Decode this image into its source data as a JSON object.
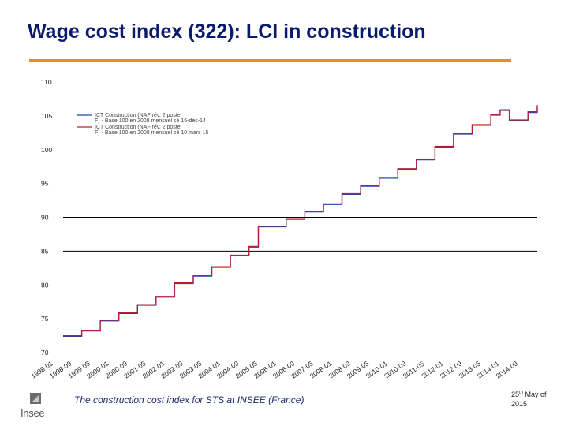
{
  "slide": {
    "title": "Wage cost index (322): LCI in construction",
    "footer_caption": "The construction cost index for STS at INSEE (France)",
    "footer_date_day": "25",
    "footer_date_sup": "th",
    "footer_date_month": "May of",
    "footer_date_year": "2015",
    "logo_text": "Insee",
    "accent_color": "#f08a1e"
  },
  "chart_data": {
    "type": "line",
    "ylim": [
      70,
      110
    ],
    "yticks": [
      70,
      75,
      80,
      85,
      90,
      95,
      100,
      105,
      110
    ],
    "y_tick_labels": [
      "70",
      "75",
      "80",
      "85",
      "90",
      "95",
      "100",
      "105",
      "110"
    ],
    "x_tick_labels": [
      "1998-01",
      "1998-09",
      "1999-05",
      "2000-01",
      "2000-09",
      "2001-05",
      "2002-01",
      "2002-09",
      "2003-05",
      "2004-01",
      "2004-09",
      "2005-05",
      "2006-01",
      "2006-09",
      "2007-05",
      "2008-01",
      "2008-09",
      "2009-05",
      "2010-01",
      "2010-09",
      "2011-05",
      "2012-01",
      "2012-09",
      "2013-05",
      "2014-01",
      "2014-09"
    ],
    "grid_lines_at": [
      90,
      85
    ],
    "legend_position": "top-left",
    "series": [
      {
        "name": "ICT Construction (NAF rév. 2 poste F) - Base 100 en 2008 mensuel sé 15-déc-14",
        "color": "#2b3fa8",
        "x": [
          "1998-01",
          "1998-09",
          "1999-05",
          "2000-01",
          "2000-09",
          "2001-05",
          "2002-01",
          "2002-09",
          "2003-05",
          "2004-01",
          "2004-09",
          "2005-01",
          "2005-05",
          "2006-01",
          "2006-09",
          "2007-05",
          "2008-01",
          "2008-09",
          "2009-05",
          "2010-01",
          "2010-09",
          "2011-05",
          "2012-01",
          "2012-09",
          "2013-05",
          "2013-09",
          "2014-01",
          "2014-09",
          "2015-01"
        ],
        "y": [
          72.4,
          73.2,
          74.7,
          75.8,
          77.0,
          78.2,
          80.2,
          81.3,
          82.6,
          84.3,
          85.6,
          88.6,
          88.6,
          89.7,
          90.8,
          91.9,
          93.4,
          94.6,
          95.8,
          97.1,
          98.5,
          100.4,
          102.3,
          103.6,
          105.1,
          105.8,
          104.3,
          105.5,
          106.3
        ]
      },
      {
        "name": "ICT Construction (NAF rév. 2 poste F) - Base 100 en 2008 mensuel sé 10 mars 15",
        "color": "#b3203a",
        "x": [
          "1998-01",
          "1998-09",
          "1999-05",
          "2000-01",
          "2000-09",
          "2001-05",
          "2002-01",
          "2002-09",
          "2003-05",
          "2004-01",
          "2004-09",
          "2005-01",
          "2005-05",
          "2006-01",
          "2006-09",
          "2007-05",
          "2008-01",
          "2008-09",
          "2009-05",
          "2010-01",
          "2010-09",
          "2011-05",
          "2012-01",
          "2012-09",
          "2013-05",
          "2013-09",
          "2014-01",
          "2014-09",
          "2015-01"
        ],
        "y": [
          72.5,
          73.3,
          74.8,
          75.9,
          77.1,
          78.3,
          80.3,
          81.4,
          82.7,
          84.4,
          85.7,
          88.7,
          88.7,
          89.8,
          90.9,
          92.0,
          93.5,
          94.7,
          95.9,
          97.2,
          98.6,
          100.5,
          102.4,
          103.7,
          105.2,
          105.9,
          104.4,
          105.6,
          106.6
        ]
      }
    ]
  }
}
